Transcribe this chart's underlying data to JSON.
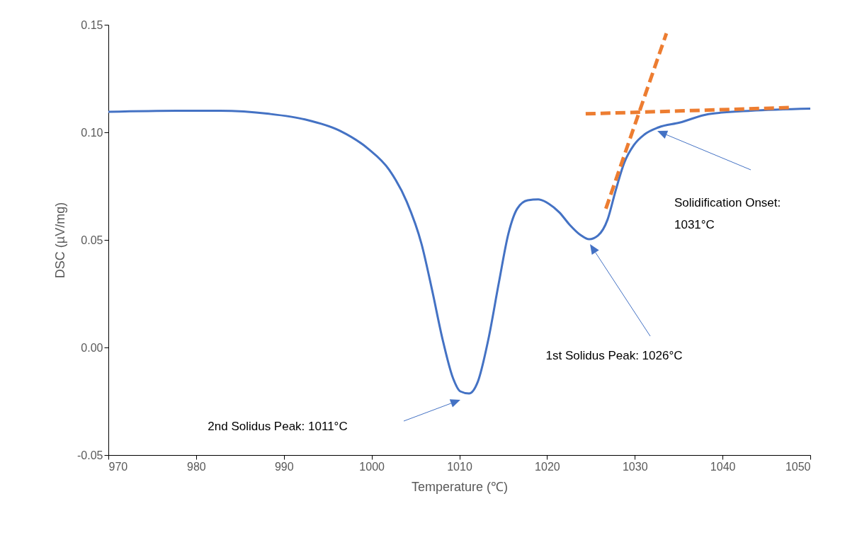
{
  "chart_data": {
    "type": "line",
    "xlabel": "Temperature (℃)",
    "ylabel": "DSC (µV/mg)",
    "xlim": [
      970,
      1050
    ],
    "xticks": [
      970,
      980,
      990,
      1000,
      1010,
      1020,
      1030,
      1040,
      1050
    ],
    "ylim": [
      -0.05,
      0.15
    ],
    "yticks": [
      {
        "value": -0.05,
        "label": "-0.05"
      },
      {
        "value": 0,
        "label": "0.00"
      },
      {
        "value": 0.05,
        "label": "0.05"
      },
      {
        "value": 0.1,
        "label": "0.10"
      },
      {
        "value": 0.15,
        "label": "0.15"
      }
    ],
    "grid": false,
    "legend": false,
    "series": [
      {
        "color": "#4472c4",
        "line_style": "solid",
        "x": [
          970,
          977.8,
          982.7,
          988.3,
          992.4,
          996.4,
          999.6,
          1002,
          1004,
          1005.7,
          1006.9,
          1008.1,
          1009.3,
          1010.1,
          1011.1,
          1012.1,
          1013.3,
          1014.5,
          1015.6,
          1016.6,
          1017.8,
          1019,
          1020.2,
          1021.4,
          1022.6,
          1023.8,
          1024.8,
          1025.8,
          1026.9,
          1027.8,
          1028.8,
          1029.9,
          1031.1,
          1032.7,
          1035.1,
          1038.4,
          1043.2,
          1050
        ],
        "values": [
          0.1095,
          0.11,
          0.11,
          0.1086,
          0.106,
          0.1007,
          0.0924,
          0.0826,
          0.0678,
          0.048,
          0.0266,
          0.0036,
          -0.0145,
          -0.0204,
          -0.0214,
          -0.016,
          0.0036,
          0.03,
          0.053,
          0.0645,
          0.0684,
          0.0688,
          0.0668,
          0.0628,
          0.0569,
          0.0523,
          0.0503,
          0.052,
          0.0595,
          0.0727,
          0.0859,
          0.0941,
          0.099,
          0.1023,
          0.1045,
          0.1085,
          0.11,
          0.111
        ]
      },
      {
        "color": "#ed7d31",
        "line_style": "dashed",
        "x": [
          1024.4,
          1047.6
        ],
        "values": [
          0.1086,
          0.1115
        ]
      },
      {
        "color": "#ed7d31",
        "line_style": "dashed",
        "x": [
          1026.7,
          1033.6
        ],
        "values": [
          0.0645,
          0.146
        ]
      }
    ],
    "annotations": [
      "2nd Solidus Peak: 1011°C",
      "1st Solidus Peak: 1026°C",
      "Solidification Onset:\n1031°C"
    ]
  }
}
